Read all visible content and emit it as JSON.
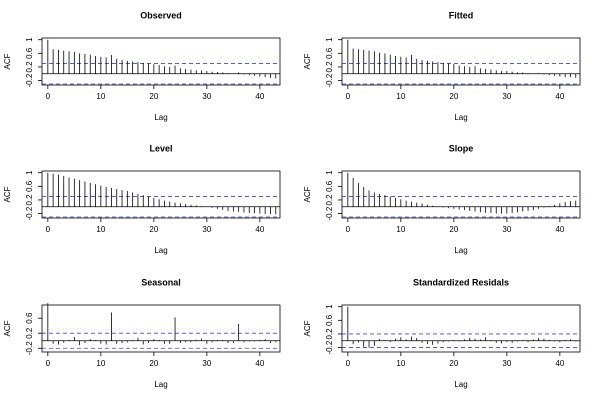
{
  "chart_data": [
    {
      "type": "bar",
      "title": "Observed",
      "x_label": "Lag",
      "y_label": "ACF",
      "x": [
        0,
        1,
        2,
        3,
        4,
        5,
        6,
        7,
        8,
        9,
        10,
        11,
        12,
        13,
        14,
        15,
        16,
        17,
        18,
        19,
        20,
        21,
        22,
        23,
        24,
        25,
        26,
        27,
        28,
        29,
        30,
        31,
        32,
        33,
        34,
        35,
        36,
        37,
        38,
        39,
        40,
        41,
        42,
        43
      ],
      "values": [
        1.0,
        0.72,
        0.7,
        0.68,
        0.66,
        0.64,
        0.6,
        0.58,
        0.56,
        0.52,
        0.5,
        0.48,
        0.55,
        0.44,
        0.4,
        0.38,
        0.36,
        0.34,
        0.32,
        0.3,
        0.28,
        0.26,
        0.22,
        0.2,
        0.24,
        0.16,
        0.14,
        0.12,
        0.1,
        0.1,
        0.08,
        0.06,
        0.05,
        0.04,
        0.02,
        0.0,
        0.04,
        -0.02,
        -0.04,
        -0.06,
        -0.08,
        -0.1,
        -0.12,
        -0.14
      ],
      "xlim": [
        -1.1,
        43.8
      ],
      "ylim": [
        -0.33,
        1.05
      ],
      "xticks": [
        0,
        10,
        20,
        30,
        40
      ],
      "yticks": [
        -0.2,
        0.2,
        0.6,
        1.0
      ],
      "conf_band": [
        -0.3,
        0.3
      ],
      "color": "#000000",
      "band_color": "#4040e0"
    },
    {
      "type": "bar",
      "title": "Fitted",
      "x_label": "Lag",
      "y_label": "ACF",
      "x": [
        0,
        1,
        2,
        3,
        4,
        5,
        6,
        7,
        8,
        9,
        10,
        11,
        12,
        13,
        14,
        15,
        16,
        17,
        18,
        19,
        20,
        21,
        22,
        23,
        24,
        25,
        26,
        27,
        28,
        29,
        30,
        31,
        32,
        33,
        34,
        35,
        36,
        37,
        38,
        39,
        40,
        41,
        42,
        43
      ],
      "values": [
        1.0,
        0.74,
        0.72,
        0.7,
        0.68,
        0.66,
        0.62,
        0.6,
        0.56,
        0.52,
        0.5,
        0.48,
        0.56,
        0.44,
        0.4,
        0.38,
        0.36,
        0.34,
        0.32,
        0.3,
        0.28,
        0.24,
        0.22,
        0.2,
        0.22,
        0.16,
        0.14,
        0.12,
        0.1,
        0.08,
        0.08,
        0.06,
        0.04,
        0.04,
        0.02,
        0.0,
        0.02,
        -0.02,
        -0.04,
        -0.06,
        -0.08,
        -0.1,
        -0.1,
        -0.12
      ],
      "xlim": [
        -1.1,
        43.8
      ],
      "ylim": [
        -0.33,
        1.05
      ],
      "xticks": [
        0,
        10,
        20,
        30,
        40
      ],
      "yticks": [
        -0.2,
        0.2,
        0.6,
        1.0
      ],
      "conf_band": [
        -0.3,
        0.3
      ],
      "color": "#000000",
      "band_color": "#4040e0"
    },
    {
      "type": "bar",
      "title": "Level",
      "x_label": "Lag",
      "y_label": "ACF",
      "x": [
        0,
        1,
        2,
        3,
        4,
        5,
        6,
        7,
        8,
        9,
        10,
        11,
        12,
        13,
        14,
        15,
        16,
        17,
        18,
        19,
        20,
        21,
        22,
        23,
        24,
        25,
        26,
        27,
        28,
        29,
        30,
        31,
        32,
        33,
        34,
        35,
        36,
        37,
        38,
        39,
        40,
        41,
        42,
        43
      ],
      "values": [
        1.0,
        0.97,
        0.94,
        0.9,
        0.86,
        0.82,
        0.78,
        0.74,
        0.7,
        0.66,
        0.62,
        0.58,
        0.55,
        0.52,
        0.49,
        0.46,
        0.42,
        0.38,
        0.34,
        0.3,
        0.26,
        0.22,
        0.18,
        0.15,
        0.12,
        0.1,
        0.08,
        0.06,
        0.04,
        0.02,
        0.0,
        -0.03,
        -0.06,
        -0.09,
        -0.12,
        -0.14,
        -0.15,
        -0.17,
        -0.18,
        -0.19,
        -0.2,
        -0.21,
        -0.22,
        -0.22
      ],
      "xlim": [
        -1.1,
        43.8
      ],
      "ylim": [
        -0.33,
        1.05
      ],
      "xticks": [
        0,
        10,
        20,
        30,
        40
      ],
      "yticks": [
        -0.2,
        0.2,
        0.6,
        1.0
      ],
      "conf_band": [
        -0.3,
        0.3
      ],
      "color": "#000000",
      "band_color": "#4040e0"
    },
    {
      "type": "bar",
      "title": "Slope",
      "x_label": "Lag",
      "y_label": "ACF",
      "x": [
        0,
        1,
        2,
        3,
        4,
        5,
        6,
        7,
        8,
        9,
        10,
        11,
        12,
        13,
        14,
        15,
        16,
        17,
        18,
        19,
        20,
        21,
        22,
        23,
        24,
        25,
        26,
        27,
        28,
        29,
        30,
        31,
        32,
        33,
        34,
        35,
        36,
        37,
        38,
        39,
        40,
        41,
        42,
        43
      ],
      "values": [
        1.0,
        0.85,
        0.7,
        0.58,
        0.48,
        0.42,
        0.38,
        0.34,
        0.3,
        0.26,
        0.22,
        0.18,
        0.15,
        0.12,
        0.1,
        0.06,
        0.03,
        0.0,
        -0.02,
        -0.04,
        -0.06,
        -0.08,
        -0.1,
        -0.12,
        -0.14,
        -0.16,
        -0.18,
        -0.18,
        -0.2,
        -0.2,
        -0.2,
        -0.18,
        -0.16,
        -0.14,
        -0.12,
        -0.1,
        -0.06,
        -0.02,
        0.02,
        0.06,
        0.1,
        0.14,
        0.16,
        0.18
      ],
      "xlim": [
        -1.1,
        43.8
      ],
      "ylim": [
        -0.33,
        1.05
      ],
      "xticks": [
        0,
        10,
        20,
        30,
        40
      ],
      "yticks": [
        -0.2,
        0.2,
        0.6,
        1.0
      ],
      "conf_band": [
        -0.3,
        0.3
      ],
      "color": "#000000",
      "band_color": "#4040e0"
    },
    {
      "type": "bar",
      "title": "Seasonal",
      "x_label": "Lag",
      "y_label": "ACF",
      "x": [
        0,
        1,
        2,
        3,
        4,
        5,
        6,
        7,
        8,
        9,
        10,
        11,
        12,
        13,
        14,
        15,
        16,
        17,
        18,
        19,
        20,
        21,
        22,
        23,
        24,
        25,
        26,
        27,
        28,
        29,
        30,
        31,
        32,
        33,
        34,
        35,
        36,
        37,
        38,
        39,
        40,
        41,
        42,
        43
      ],
      "values": [
        1.0,
        -0.08,
        -0.1,
        -0.05,
        0.02,
        0.1,
        -0.12,
        -0.06,
        0.04,
        0.02,
        -0.08,
        -0.1,
        0.75,
        -0.08,
        -0.06,
        -0.04,
        0.02,
        0.08,
        -0.1,
        -0.06,
        0.04,
        0.02,
        -0.08,
        -0.08,
        0.62,
        -0.06,
        -0.04,
        -0.04,
        0.02,
        0.06,
        -0.08,
        -0.04,
        0.02,
        0.02,
        -0.06,
        -0.06,
        0.45,
        -0.04,
        -0.02,
        -0.02,
        0.02,
        0.04,
        -0.06,
        -0.04
      ],
      "xlim": [
        -1.1,
        43.8
      ],
      "ylim": [
        -0.3,
        0.95
      ],
      "xticks": [
        0,
        10,
        20,
        30,
        40
      ],
      "yticks": [
        -0.2,
        0.2,
        0.6
      ],
      "conf_band": [
        -0.2,
        0.2
      ],
      "color": "#000000",
      "band_color": "#4040e0"
    },
    {
      "type": "bar",
      "title": "Standardized Residals",
      "x_label": "Lag",
      "y_label": "ACF",
      "x": [
        0,
        1,
        2,
        3,
        4,
        5,
        6,
        7,
        8,
        9,
        10,
        11,
        12,
        13,
        14,
        15,
        16,
        17,
        18,
        19,
        20,
        21,
        22,
        23,
        24,
        25,
        26,
        27,
        28,
        29,
        30,
        31,
        32,
        33,
        34,
        35,
        36,
        37,
        38,
        39,
        40,
        41,
        42,
        43
      ],
      "values": [
        1.0,
        -0.1,
        -0.05,
        -0.18,
        -0.2,
        -0.15,
        0.05,
        0.02,
        -0.04,
        0.06,
        0.1,
        0.04,
        0.12,
        0.08,
        -0.06,
        -0.1,
        -0.12,
        -0.08,
        -0.04,
        -0.02,
        0.02,
        -0.02,
        0.04,
        0.08,
        0.06,
        0.04,
        0.1,
        0.02,
        -0.06,
        -0.08,
        -0.04,
        -0.06,
        -0.02,
        0.02,
        -0.04,
        0.04,
        0.08,
        0.06,
        0.02,
        -0.02,
        -0.04,
        0.02,
        0.04,
        -0.02
      ],
      "xlim": [
        -1.1,
        43.8
      ],
      "ylim": [
        -0.33,
        1.05
      ],
      "xticks": [
        0,
        10,
        20,
        30,
        40
      ],
      "yticks": [
        -0.2,
        0.2,
        0.6,
        1.0
      ],
      "conf_band": [
        -0.2,
        0.2
      ],
      "color": "#000000",
      "band_color": "#4040e0"
    }
  ]
}
